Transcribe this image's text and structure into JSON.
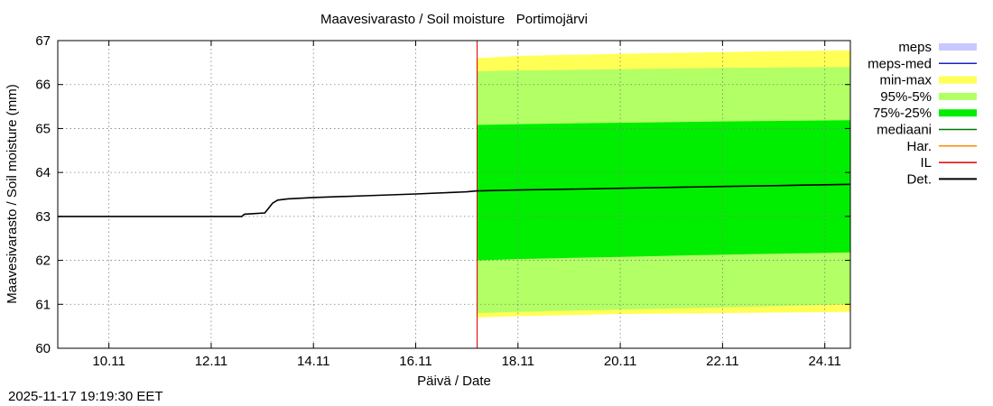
{
  "chart_data": {
    "type": "area",
    "title": "Maavesivarasto / Soil moisture   Portimojärvi",
    "xlabel": "Päivä / Date",
    "ylabel": "Maavesivarasto / Soil moisture (mm)",
    "xlim": [
      0,
      15.5
    ],
    "ylim": [
      60,
      67
    ],
    "x_ticks": [
      {
        "x": 1,
        "label": "10.11"
      },
      {
        "x": 3,
        "label": "12.11"
      },
      {
        "x": 5,
        "label": "14.11"
      },
      {
        "x": 7,
        "label": "16.11"
      },
      {
        "x": 9,
        "label": "18.11"
      },
      {
        "x": 11,
        "label": "20.11"
      },
      {
        "x": 13,
        "label": "22.11"
      },
      {
        "x": 15,
        "label": "24.11"
      }
    ],
    "y_ticks": [
      60,
      61,
      62,
      63,
      64,
      65,
      66,
      67
    ],
    "grid": true,
    "forecast_start_x": 8.2,
    "series": [
      {
        "name": "Det.",
        "color": "#000000",
        "x": [
          0,
          1,
          2,
          3,
          3.6,
          3.65,
          4.05,
          4.2,
          4.3,
          4.5,
          5,
          6,
          7,
          8,
          8.2,
          9,
          10,
          11,
          12,
          13,
          14,
          15,
          15.5
        ],
        "y": [
          63.0,
          63.0,
          63.0,
          63.0,
          63.0,
          63.05,
          63.08,
          63.3,
          63.37,
          63.4,
          63.43,
          63.47,
          63.51,
          63.56,
          63.58,
          63.6,
          63.62,
          63.64,
          63.66,
          63.68,
          63.7,
          63.72,
          63.73
        ]
      }
    ],
    "bands": [
      {
        "name": "min-max",
        "color": "#ffff55",
        "x": [
          8.2,
          9,
          11,
          13,
          15.5
        ],
        "upper": [
          66.6,
          66.65,
          66.7,
          66.74,
          66.78
        ],
        "lower": [
          60.7,
          60.73,
          60.78,
          60.8,
          60.83
        ]
      },
      {
        "name": "95%-5%",
        "color": "#b2ff66",
        "x": [
          8.2,
          9,
          11,
          13,
          15.5
        ],
        "upper": [
          66.3,
          66.32,
          66.35,
          66.38,
          66.4
        ],
        "lower": [
          60.8,
          60.83,
          60.88,
          60.93,
          61.0
        ]
      },
      {
        "name": "75%-25%",
        "color": "#00ee00",
        "x": [
          8.2,
          9,
          11,
          13,
          15.5
        ],
        "upper": [
          65.08,
          65.1,
          65.13,
          65.16,
          65.19
        ],
        "lower": [
          62.0,
          62.03,
          62.08,
          62.13,
          62.18
        ]
      }
    ],
    "vlines": [
      {
        "name": "IL",
        "x": 8.2,
        "color": "#dd0000"
      }
    ],
    "legend": {
      "position": "right",
      "entries": [
        {
          "label": "meps",
          "kind": "box",
          "color": "#c8c8ff"
        },
        {
          "label": "meps-med",
          "kind": "line",
          "color": "#2020c0"
        },
        {
          "label": "min-max",
          "kind": "box",
          "color": "#ffff55"
        },
        {
          "label": "95%-5%",
          "kind": "box",
          "color": "#b2ff66"
        },
        {
          "label": "75%-25%",
          "kind": "box",
          "color": "#00ee00"
        },
        {
          "label": "mediaani",
          "kind": "line",
          "color": "#007700"
        },
        {
          "label": "Har.",
          "kind": "line",
          "color": "#ff8800"
        },
        {
          "label": "IL",
          "kind": "line",
          "color": "#dd0000"
        },
        {
          "label": "Det.",
          "kind": "line",
          "color": "#000000"
        }
      ]
    }
  },
  "timestamp": "2025-11-17 19:19:30 EET"
}
